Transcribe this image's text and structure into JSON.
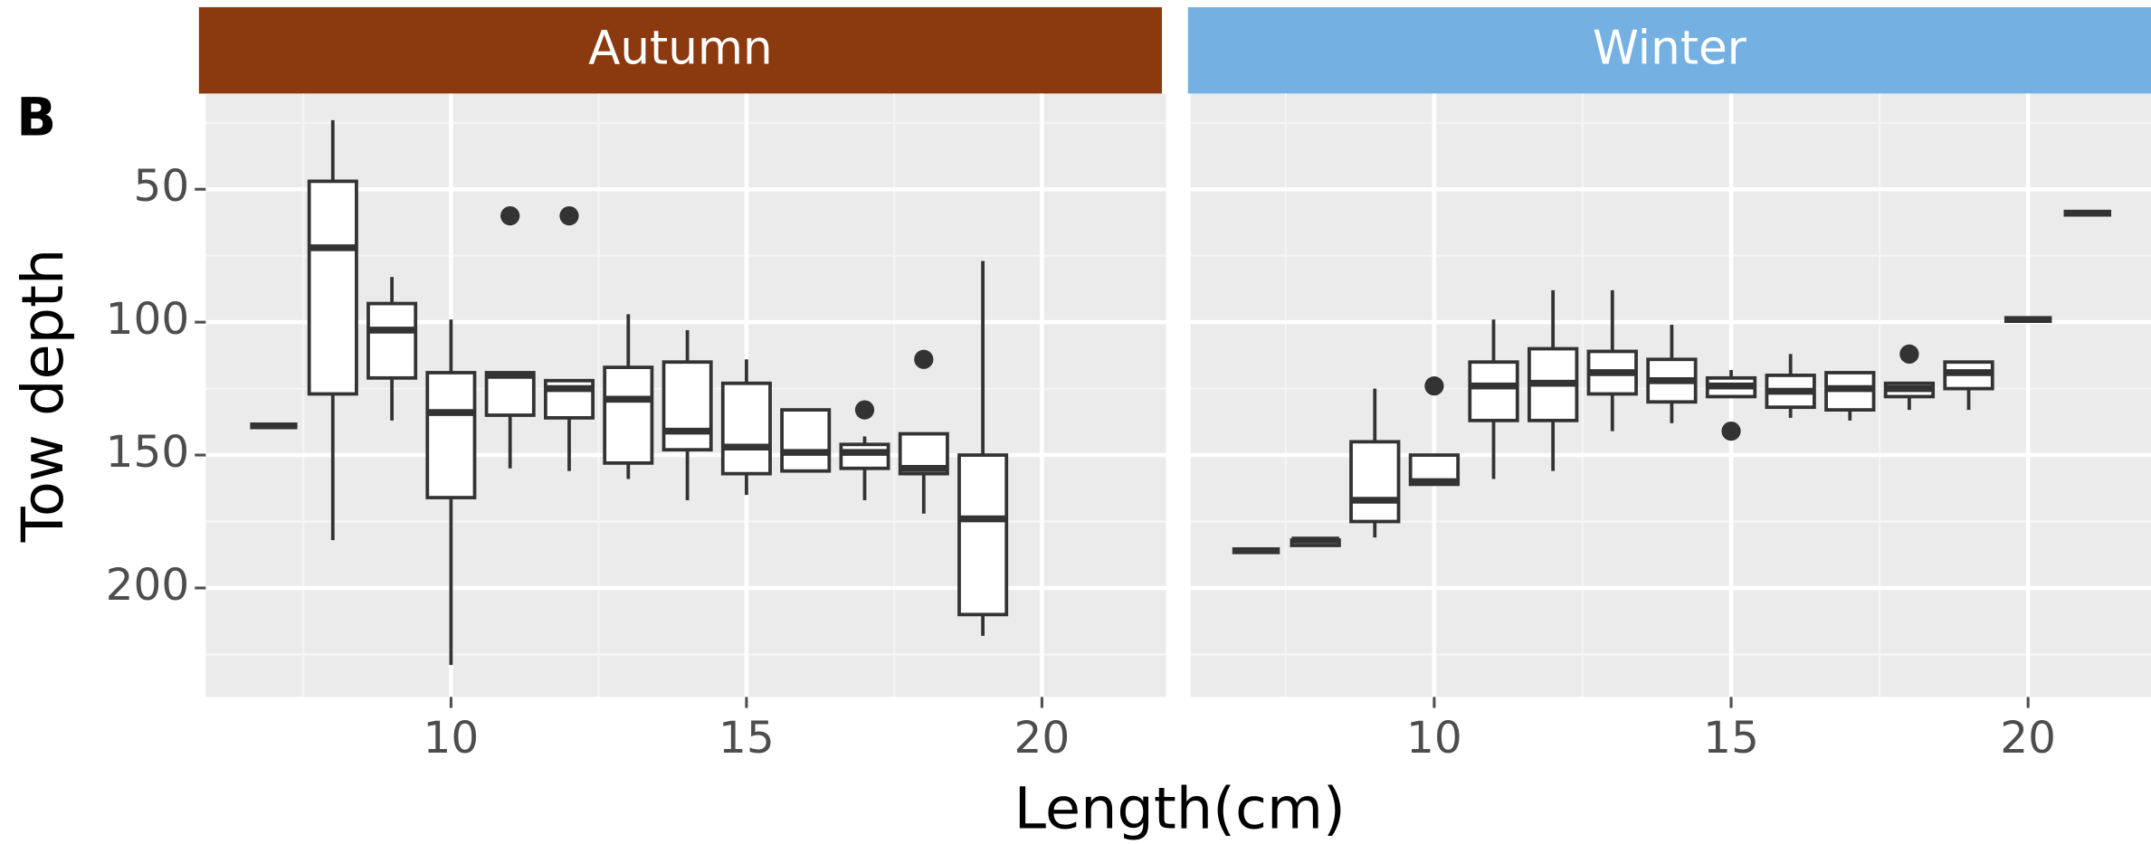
{
  "figure": {
    "panel_label": "B",
    "x_label": "Length(cm)",
    "y_label": "Tow depth"
  },
  "chart_data": [
    {
      "type": "box",
      "title": "Autumn",
      "strip_color": "#8b3a0f",
      "x": [
        7,
        8,
        9,
        10,
        11,
        12,
        13,
        14,
        15,
        16,
        17,
        18,
        19
      ],
      "min": [
        139,
        24,
        83,
        99,
        119,
        122,
        97,
        103,
        114,
        133,
        143,
        142,
        77
      ],
      "q1": [
        139,
        47,
        93,
        119,
        119,
        122,
        117,
        115,
        123,
        133,
        146,
        142,
        150
      ],
      "median": [
        139,
        72,
        103,
        134,
        120,
        125,
        129,
        141,
        147,
        149,
        149,
        155,
        174
      ],
      "q3": [
        139,
        127,
        121,
        166,
        135,
        136,
        153,
        148,
        157,
        156,
        155,
        157,
        210
      ],
      "max": [
        139,
        182,
        137,
        229,
        155,
        156,
        159,
        167,
        165,
        156,
        167,
        172,
        218
      ],
      "outlier_x": [
        11,
        12,
        17,
        18
      ],
      "outlier_y": [
        60,
        60,
        133,
        114
      ],
      "xlim": [
        5.85,
        22.1
      ],
      "xticks": [
        10,
        15,
        20
      ],
      "ylim": [
        14,
        241
      ],
      "yticks": [
        50,
        100,
        150,
        200
      ],
      "y_reversed": true,
      "grid": true
    },
    {
      "type": "box",
      "title": "Winter",
      "strip_color": "#74b0e2",
      "x": [
        7,
        8,
        9,
        10,
        11,
        12,
        13,
        14,
        15,
        16,
        17,
        18,
        19,
        20,
        21
      ],
      "min": [
        186,
        181,
        125,
        150,
        99,
        88,
        88,
        101,
        118,
        112,
        119,
        123,
        115,
        99,
        59
      ],
      "q1": [
        186,
        182,
        145,
        150,
        115,
        110,
        111,
        114,
        121,
        120,
        119,
        123,
        115,
        99,
        59
      ],
      "median": [
        186,
        182,
        167,
        160,
        124,
        123,
        119,
        122,
        124,
        126,
        125,
        125,
        119,
        99,
        59
      ],
      "q3": [
        186,
        184,
        175,
        161,
        137,
        137,
        127,
        130,
        128,
        132,
        133,
        128,
        125,
        99,
        59
      ],
      "max": [
        186,
        184,
        181,
        161,
        159,
        156,
        141,
        138,
        128,
        136,
        137,
        133,
        133,
        99,
        59
      ],
      "outlier_x": [
        10,
        15,
        18
      ],
      "outlier_y": [
        124,
        141,
        112
      ],
      "xlim": [
        5.9,
        22.07
      ],
      "xticks": [
        10,
        15,
        20
      ],
      "ylim": [
        14,
        241
      ],
      "yticks": [
        50,
        100,
        150,
        200
      ],
      "y_reversed": true,
      "grid": true
    }
  ]
}
